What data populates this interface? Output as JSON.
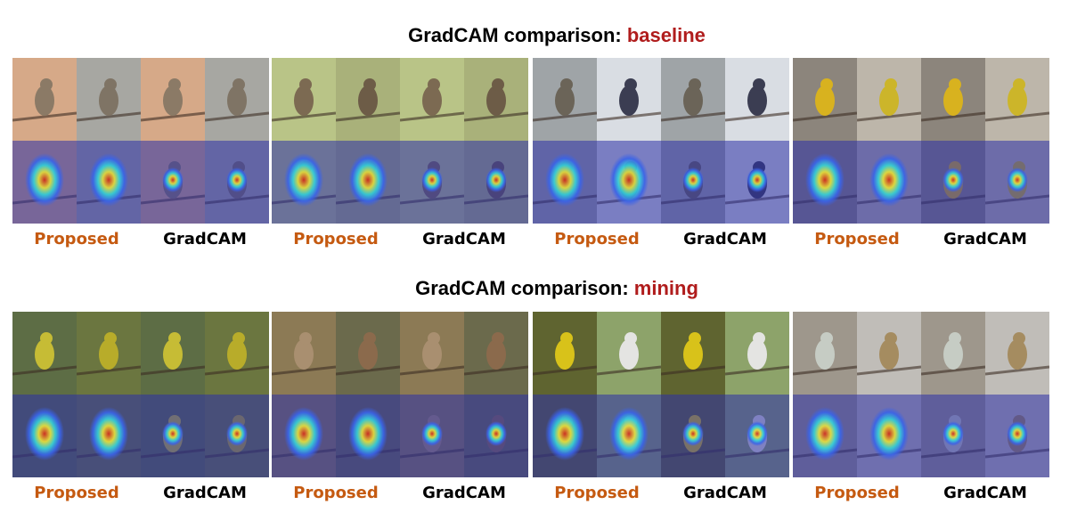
{
  "sections": [
    {
      "title_prefix": "GradCAM comparison: ",
      "title_highlight": "baseline",
      "panels": [
        {
          "caption_left": "Proposed",
          "caption_right": "GradCAM",
          "bg": [
            "#d6a988",
            "#a7a7a2"
          ],
          "bird": [
            "#8b7a66",
            "#7f7465"
          ]
        },
        {
          "caption_left": "Proposed",
          "caption_right": "GradCAM",
          "bg": [
            "#b9c487",
            "#a9b17a"
          ],
          "bird": [
            "#7c6a52",
            "#6d5c47"
          ]
        },
        {
          "caption_left": "Proposed",
          "caption_right": "GradCAM",
          "bg": [
            "#9fa4a7",
            "#d9dde3"
          ],
          "bird": [
            "#6b6458",
            "#3b3d52"
          ]
        },
        {
          "caption_left": "Proposed",
          "caption_right": "GradCAM",
          "bg": [
            "#8c857c",
            "#bdb6aa"
          ],
          "bird": [
            "#d8b21f",
            "#ccb52a"
          ]
        }
      ]
    },
    {
      "title_prefix": "GradCAM comparison: ",
      "title_highlight": "mining",
      "panels": [
        {
          "caption_left": "Proposed",
          "caption_right": "GradCAM",
          "bg": [
            "#5d6d45",
            "#6b7640"
          ],
          "bird": [
            "#c6bc35",
            "#b8ac2a"
          ]
        },
        {
          "caption_left": "Proposed",
          "caption_right": "GradCAM",
          "bg": [
            "#8c7a55",
            "#6b6a4c"
          ],
          "bird": [
            "#a98f70",
            "#8b6a4c"
          ]
        },
        {
          "caption_left": "Proposed",
          "caption_right": "GradCAM",
          "bg": [
            "#5f6430",
            "#8da36a"
          ],
          "bird": [
            "#d8c21a",
            "#e4e4e2"
          ]
        },
        {
          "caption_left": "Proposed",
          "caption_right": "GradCAM",
          "bg": [
            "#9e978c",
            "#c0bdb8"
          ],
          "bird": [
            "#c6ccc4",
            "#a58c60"
          ]
        }
      ]
    }
  ],
  "heatmap_colors": [
    "#2b2fa8",
    "#3a63e8",
    "#35d3d8",
    "#e8e23a",
    "#d42b1a"
  ]
}
